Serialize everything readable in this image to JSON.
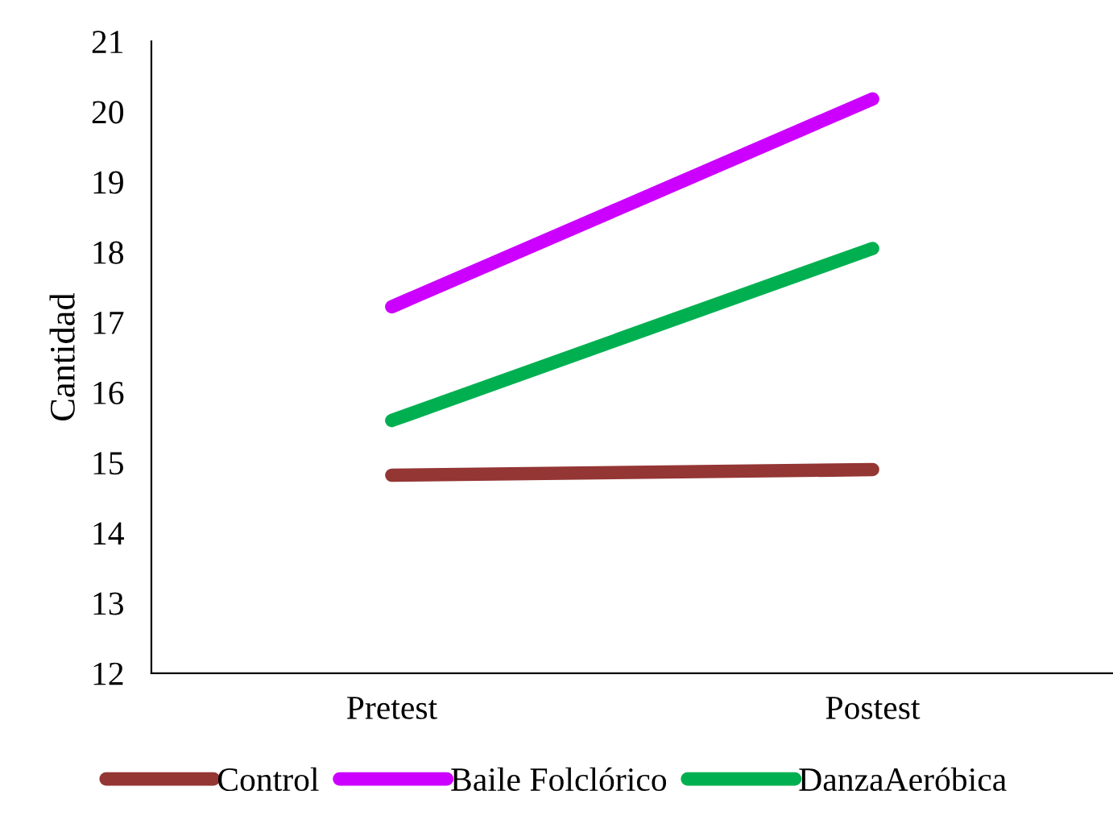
{
  "chart_data": {
    "type": "line",
    "ylabel": "Cantidad",
    "categories": [
      "Pretest",
      "Postest"
    ],
    "series": [
      {
        "name": "Control",
        "color": "#943634",
        "values": [
          14.82,
          14.9
        ]
      },
      {
        "name": "Baile Folclórico",
        "color": "#cc00ff",
        "values": [
          17.22,
          20.18
        ]
      },
      {
        "name": "DanzaAeróbica",
        "color": "#00b050",
        "values": [
          15.6,
          18.05
        ]
      }
    ],
    "ylim": [
      12,
      21
    ],
    "yticks": [
      12,
      13,
      14,
      15,
      16,
      17,
      18,
      19,
      20,
      21
    ],
    "grid": false,
    "legend": "bottom",
    "marker": "none",
    "line_style": "solid"
  }
}
